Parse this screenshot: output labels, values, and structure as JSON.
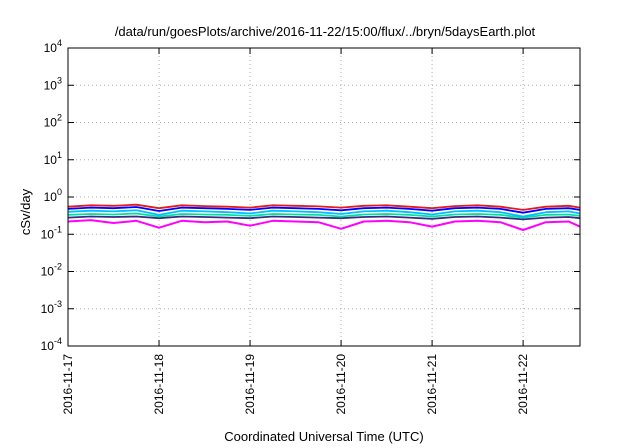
{
  "chart_data": {
    "type": "line",
    "title": "/data/run/goesPlots/archive/2016-11-22/15:00/flux/../bryn/5daysEarth.plot",
    "xlabel": "Coordinated Universal Time (UTC)",
    "ylabel": "cSv/day",
    "yscale": "log",
    "ylim": [
      0.0001,
      10000
    ],
    "xlim": [
      "2016-11-17T00:00",
      "2016-11-22T15:00"
    ],
    "grid": true,
    "x_ticks": [
      "2016-11-17",
      "2016-11-18",
      "2016-11-19",
      "2016-11-20",
      "2016-11-21",
      "2016-11-22"
    ],
    "y_ticks": [
      {
        "value": 0.0001,
        "base": "10",
        "exp": "-4"
      },
      {
        "value": 0.001,
        "base": "10",
        "exp": "-3"
      },
      {
        "value": 0.01,
        "base": "10",
        "exp": "-2"
      },
      {
        "value": 0.1,
        "base": "10",
        "exp": "-1"
      },
      {
        "value": 1,
        "base": "10",
        "exp": "0"
      },
      {
        "value": 10,
        "base": "10",
        "exp": "1"
      },
      {
        "value": 100,
        "base": "10",
        "exp": "2"
      },
      {
        "value": 1000,
        "base": "10",
        "exp": "3"
      },
      {
        "value": 10000,
        "base": "10",
        "exp": "4"
      }
    ],
    "x": [
      "2016-11-17T00:00",
      "2016-11-17T06:00",
      "2016-11-17T12:00",
      "2016-11-17T18:00",
      "2016-11-18T00:00",
      "2016-11-18T06:00",
      "2016-11-18T12:00",
      "2016-11-18T18:00",
      "2016-11-19T00:00",
      "2016-11-19T06:00",
      "2016-11-19T12:00",
      "2016-11-19T18:00",
      "2016-11-20T00:00",
      "2016-11-20T06:00",
      "2016-11-20T12:00",
      "2016-11-20T18:00",
      "2016-11-21T00:00",
      "2016-11-21T06:00",
      "2016-11-21T12:00",
      "2016-11-21T18:00",
      "2016-11-22T00:00",
      "2016-11-22T06:00",
      "2016-11-22T12:00",
      "2016-11-22T15:00"
    ],
    "series": [
      {
        "color": "#e41a1c",
        "values": [
          0.55,
          0.6,
          0.58,
          0.62,
          0.5,
          0.6,
          0.57,
          0.55,
          0.52,
          0.6,
          0.58,
          0.56,
          0.52,
          0.58,
          0.6,
          0.55,
          0.5,
          0.57,
          0.6,
          0.55,
          0.45,
          0.55,
          0.58,
          0.52
        ]
      },
      {
        "color": "#0000ff",
        "values": [
          0.48,
          0.52,
          0.5,
          0.54,
          0.42,
          0.52,
          0.5,
          0.48,
          0.45,
          0.52,
          0.5,
          0.48,
          0.44,
          0.5,
          0.52,
          0.48,
          0.43,
          0.5,
          0.52,
          0.48,
          0.38,
          0.48,
          0.5,
          0.45
        ]
      },
      {
        "color": "#00bfff",
        "values": [
          0.4,
          0.43,
          0.41,
          0.44,
          0.33,
          0.43,
          0.41,
          0.39,
          0.36,
          0.43,
          0.41,
          0.39,
          0.35,
          0.41,
          0.43,
          0.39,
          0.34,
          0.41,
          0.43,
          0.39,
          0.3,
          0.39,
          0.41,
          0.36
        ]
      },
      {
        "color": "#00e0a0",
        "values": [
          0.33,
          0.35,
          0.34,
          0.36,
          0.3,
          0.35,
          0.34,
          0.33,
          0.31,
          0.35,
          0.34,
          0.33,
          0.3,
          0.34,
          0.35,
          0.33,
          0.3,
          0.34,
          0.35,
          0.33,
          0.28,
          0.33,
          0.34,
          0.31
        ]
      },
      {
        "color": "#3a2a80",
        "values": [
          0.28,
          0.3,
          0.29,
          0.3,
          0.27,
          0.3,
          0.29,
          0.28,
          0.27,
          0.3,
          0.29,
          0.28,
          0.27,
          0.29,
          0.3,
          0.28,
          0.26,
          0.29,
          0.3,
          0.28,
          0.25,
          0.28,
          0.29,
          0.27
        ]
      },
      {
        "color": "#ff00ff",
        "values": [
          0.22,
          0.24,
          0.2,
          0.23,
          0.15,
          0.23,
          0.21,
          0.22,
          0.17,
          0.23,
          0.22,
          0.21,
          0.14,
          0.22,
          0.23,
          0.21,
          0.16,
          0.22,
          0.23,
          0.21,
          0.13,
          0.21,
          0.22,
          0.16
        ]
      }
    ]
  }
}
